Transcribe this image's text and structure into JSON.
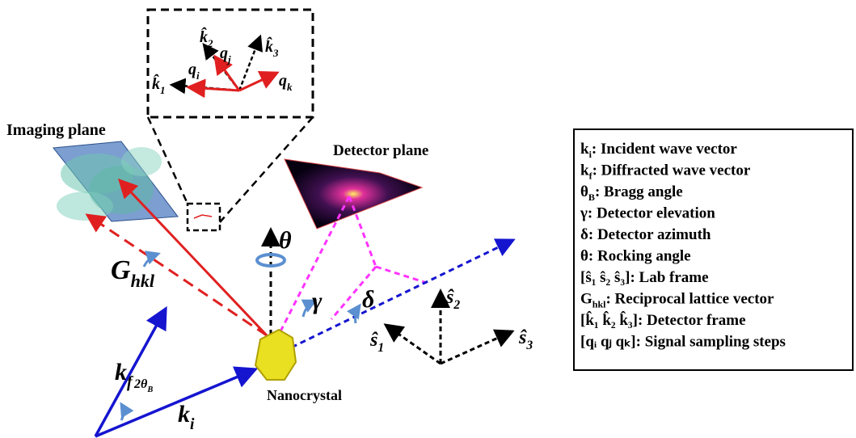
{
  "regions": {
    "imaging_plane": "Imaging plane",
    "detector_plane": "Detector plane",
    "nanocrystal": "Nanocrystal"
  },
  "zoom_labels": {
    "k1": {
      "base": "k̂",
      "sub": "1"
    },
    "k2": {
      "base": "k̂",
      "sub": "2"
    },
    "k3": {
      "base": "k̂",
      "sub": "3"
    },
    "qi": {
      "base": "q",
      "sub": "i"
    },
    "qj": {
      "base": "q",
      "sub": "j"
    },
    "qk": {
      "base": "q",
      "sub": "k"
    }
  },
  "vector_labels": {
    "ghkl": {
      "base": "G",
      "sub": "hkl"
    },
    "kf": {
      "base": "k",
      "sub": "f"
    },
    "ki": {
      "base": "k",
      "sub": "i"
    },
    "two_theta": {
      "base": "2θ",
      "sub": "B"
    },
    "s1": {
      "base": "ŝ",
      "sub": "1"
    },
    "s2": {
      "base": "ŝ",
      "sub": "2"
    },
    "s3": {
      "base": "ŝ",
      "sub": "3"
    }
  },
  "angle_labels": {
    "theta": "θ",
    "gamma": "γ",
    "delta": "δ"
  },
  "legend": [
    {
      "symbol": "k",
      "sub": "i",
      "desc": ": Incident wave vector"
    },
    {
      "symbol": "k",
      "sub": "f",
      "desc": ": Diffracted wave vector"
    },
    {
      "symbol": "θ",
      "sub": "B",
      "desc": ": Bragg angle"
    },
    {
      "symbol": "γ",
      "desc": ": Detector elevation"
    },
    {
      "symbol": "δ",
      "desc": ": Detector azimuth"
    },
    {
      "symbol": "θ",
      "desc": ": Rocking angle"
    },
    {
      "symbol": "[ŝ₁ ŝ₂ ŝ₃]",
      "desc": ": Lab frame"
    },
    {
      "symbol": "G",
      "sub": "hkl",
      "desc": ": Reciprocal lattice vector"
    },
    {
      "symbol": "[k̂₁ k̂₂ k̂₃]",
      "desc": ": Detector frame"
    },
    {
      "symbol": "[qᵢ qⱼ qₖ]",
      "desc": ": Signal sampling steps"
    }
  ]
}
